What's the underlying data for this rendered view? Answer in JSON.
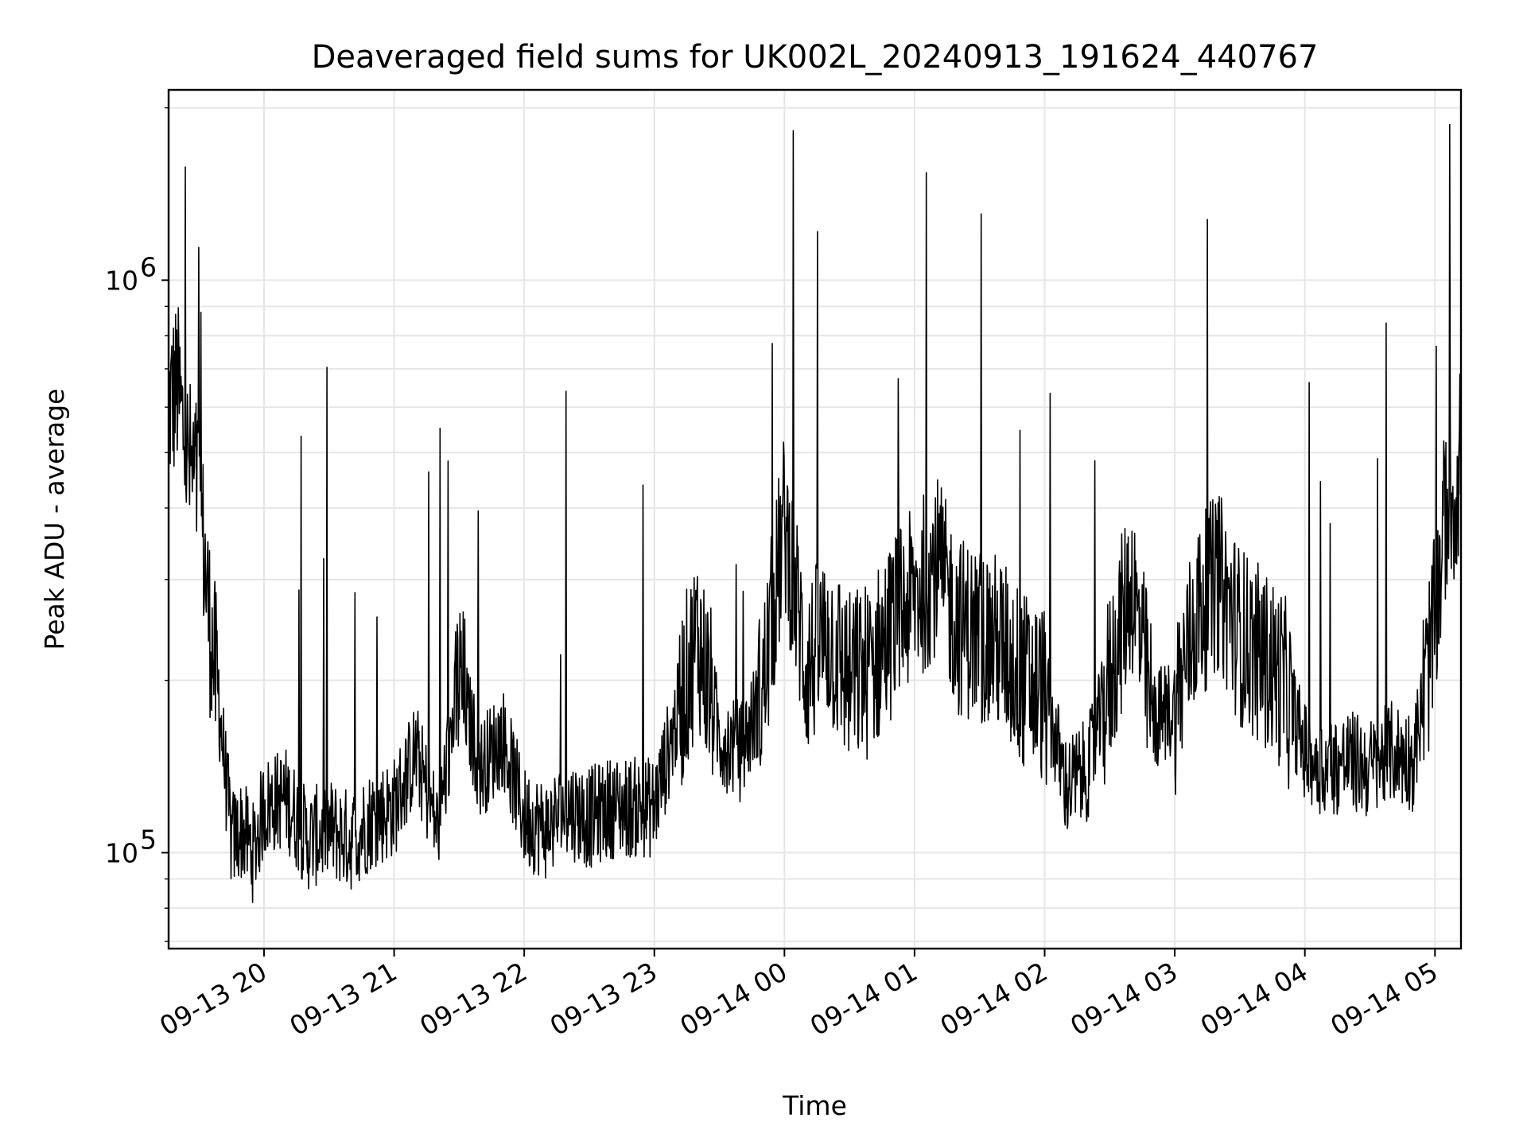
{
  "chart_data": {
    "type": "line",
    "title": "Deaveraged field sums for UK002L_20240913_191624_440767",
    "xlabel": "Time",
    "ylabel": "Peak ADU - average",
    "x_tick_labels": [
      "09-13 20",
      "09-13 21",
      "09-13 22",
      "09-13 23",
      "09-14 00",
      "09-14 01",
      "09-14 02",
      "09-14 03",
      "09-14 04",
      "09-14 05"
    ],
    "y_tick_labels": [
      {
        "base": "10",
        "exp": "5",
        "value": 100000
      },
      {
        "base": "10",
        "exp": "6",
        "value": 1000000
      }
    ],
    "y_scale": "log",
    "ylim": [
      68000,
      2150000
    ],
    "xlim": [
      "2024-09-13 19:16",
      "2024-09-14 05:12"
    ],
    "grid": true,
    "line_color": "#000000",
    "series": [
      {
        "x": [
          "2024-09-13 19:16",
          "2024-09-13 19:20",
          "2024-09-13 19:25",
          "2024-09-13 19:30",
          "2024-09-13 19:35",
          "2024-09-13 19:40",
          "2024-09-13 19:45",
          "2024-09-13 19:50",
          "2024-09-13 19:55",
          "2024-09-13 20:00",
          "2024-09-13 20:10",
          "2024-09-13 20:20",
          "2024-09-13 20:30",
          "2024-09-13 20:40",
          "2024-09-13 20:50",
          "2024-09-13 21:00",
          "2024-09-13 21:10",
          "2024-09-13 21:20",
          "2024-09-13 21:30",
          "2024-09-13 21:40",
          "2024-09-13 21:50",
          "2024-09-13 22:00",
          "2024-09-13 22:10",
          "2024-09-13 22:20",
          "2024-09-13 22:30",
          "2024-09-13 22:40",
          "2024-09-13 22:50",
          "2024-09-13 23:00",
          "2024-09-13 23:10",
          "2024-09-13 23:20",
          "2024-09-13 23:30",
          "2024-09-13 23:40",
          "2024-09-13 23:50",
          "2024-09-14 00:00",
          "2024-09-14 00:10",
          "2024-09-14 00:20",
          "2024-09-14 00:30",
          "2024-09-14 00:40",
          "2024-09-14 00:50",
          "2024-09-14 01:00",
          "2024-09-14 01:10",
          "2024-09-14 01:20",
          "2024-09-14 01:30",
          "2024-09-14 01:40",
          "2024-09-14 01:50",
          "2024-09-14 02:00",
          "2024-09-14 02:10",
          "2024-09-14 02:20",
          "2024-09-14 02:30",
          "2024-09-14 02:40",
          "2024-09-14 02:50",
          "2024-09-14 03:00",
          "2024-09-14 03:10",
          "2024-09-14 03:20",
          "2024-09-14 03:30",
          "2024-09-14 03:40",
          "2024-09-14 03:50",
          "2024-09-14 04:00",
          "2024-09-14 04:10",
          "2024-09-14 04:20",
          "2024-09-14 04:30",
          "2024-09-14 04:40",
          "2024-09-14 04:50",
          "2024-09-14 05:00",
          "2024-09-14 05:05",
          "2024-09-14 05:10",
          "2024-09-14 05:12"
        ],
        "y": [
          600000,
          650000,
          480000,
          430000,
          250000,
          170000,
          105000,
          110000,
          100000,
          120000,
          125000,
          105000,
          110000,
          105000,
          115000,
          120000,
          150000,
          110000,
          200000,
          140000,
          160000,
          115000,
          110000,
          120000,
          115000,
          120000,
          120000,
          120000,
          170000,
          240000,
          160000,
          150000,
          190000,
          380000,
          210000,
          240000,
          200000,
          210000,
          250000,
          280000,
          320000,
          250000,
          240000,
          230000,
          200000,
          190000,
          130000,
          140000,
          200000,
          300000,
          170000,
          180000,
          260000,
          300000,
          240000,
          220000,
          200000,
          150000,
          140000,
          145000,
          140000,
          150000,
          145000,
          250000,
          400000,
          430000,
          520000
        ]
      }
    ]
  }
}
